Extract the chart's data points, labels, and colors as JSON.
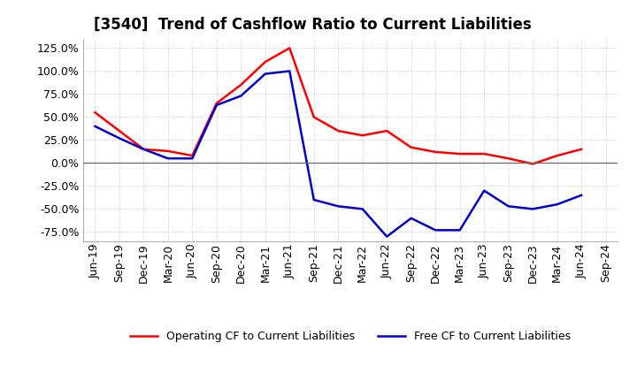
{
  "title": "[3540]  Trend of Cashflow Ratio to Current Liabilities",
  "x_labels": [
    "Jun-19",
    "Sep-19",
    "Dec-19",
    "Mar-20",
    "Jun-20",
    "Sep-20",
    "Dec-20",
    "Mar-21",
    "Jun-21",
    "Sep-21",
    "Dec-21",
    "Mar-22",
    "Jun-22",
    "Sep-22",
    "Dec-22",
    "Mar-23",
    "Jun-23",
    "Sep-23",
    "Dec-23",
    "Mar-24",
    "Jun-24",
    "Sep-24"
  ],
  "operating_cf": [
    0.55,
    0.35,
    0.15,
    0.13,
    0.08,
    0.65,
    0.85,
    1.1,
    1.25,
    0.5,
    0.35,
    0.3,
    0.35,
    0.17,
    0.12,
    0.1,
    0.1,
    0.05,
    -0.01,
    0.08,
    0.15,
    null
  ],
  "free_cf": [
    0.4,
    0.27,
    0.15,
    0.05,
    0.05,
    0.63,
    0.73,
    0.97,
    1.0,
    -0.4,
    -0.47,
    -0.5,
    -0.8,
    -0.6,
    -0.73,
    -0.73,
    -0.3,
    -0.47,
    -0.5,
    -0.45,
    -0.35,
    null
  ],
  "ylim": [
    -0.85,
    1.35
  ],
  "yticks": [
    -0.75,
    -0.5,
    -0.25,
    0.0,
    0.25,
    0.5,
    0.75,
    1.0,
    1.25
  ],
  "operating_color": "#FF0000",
  "free_color": "#0000CC",
  "background_color": "#FFFFFF",
  "grid_color": "#AAAAAA",
  "legend_operating": "Operating CF to Current Liabilities",
  "legend_free": "Free CF to Current Liabilities",
  "title_fontsize": 12,
  "tick_fontsize": 9
}
